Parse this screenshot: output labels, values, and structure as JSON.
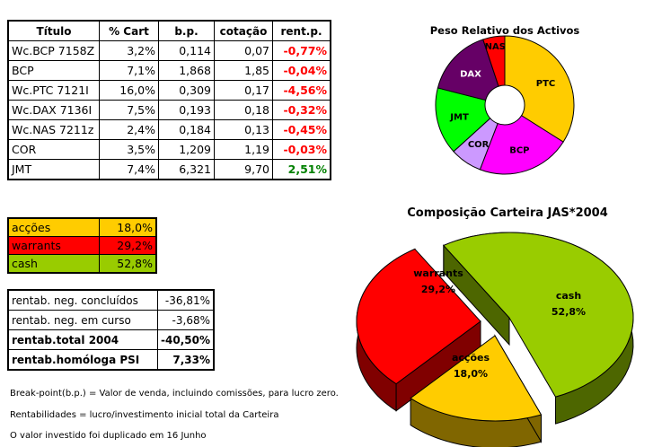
{
  "holdings": {
    "headers": [
      "Título",
      "% Cart",
      "b.p.",
      "cotação",
      "rent.p."
    ],
    "rows": [
      {
        "titulo": "Wc.BCP 7158Z",
        "cart": "3,2%",
        "bp": "0,114",
        "cotacao": "0,07",
        "rent": "-0,77%",
        "sign": "neg"
      },
      {
        "titulo": "BCP",
        "cart": "7,1%",
        "bp": "1,868",
        "cotacao": "1,85",
        "rent": "-0,04%",
        "sign": "neg"
      },
      {
        "titulo": "Wc.PTC 7121I",
        "cart": "16,0%",
        "bp": "0,309",
        "cotacao": "0,17",
        "rent": "-4,56%",
        "sign": "neg"
      },
      {
        "titulo": "Wc.DAX 7136I",
        "cart": "7,5%",
        "bp": "0,193",
        "cotacao": "0,18",
        "rent": "-0,32%",
        "sign": "neg"
      },
      {
        "titulo": "Wc.NAS 7211z",
        "cart": "2,4%",
        "bp": "0,184",
        "cotacao": "0,13",
        "rent": "-0,45%",
        "sign": "neg"
      },
      {
        "titulo": "COR",
        "cart": "3,5%",
        "bp": "1,209",
        "cotacao": "1,19",
        "rent": "-0,03%",
        "sign": "neg"
      },
      {
        "titulo": "JMT",
        "cart": "7,4%",
        "bp": "6,321",
        "cotacao": "9,70",
        "rent": "2,51%",
        "sign": "pos"
      }
    ]
  },
  "allocation": [
    {
      "label": "acções",
      "value": "18,0%",
      "color": "#ffcc00"
    },
    {
      "label": "warrants",
      "value": "29,2%",
      "color": "#ff0000"
    },
    {
      "label": "cash",
      "value": "52,8%",
      "color": "#99cc00"
    }
  ],
  "rentab": [
    {
      "label": "rentab. neg. concluídos",
      "value": "-36,81%",
      "bold": false
    },
    {
      "label": "rentab. neg. em curso",
      "value": "-3,68%",
      "bold": false
    },
    {
      "label": "rentab.total 2004",
      "value": "-40,50%",
      "bold": true
    },
    {
      "label": "rentab.homóloga PSI",
      "value": "7,33%",
      "bold": true
    }
  ],
  "notes": [
    "Break-point(b.p.) = Valor de venda, incluindo comissões, para lucro zero.",
    "Rentabilidades = lucro/investimento inicial total da Carteira",
    "O valor investido foi duplicado em 16 Junho"
  ],
  "chart_data": [
    {
      "type": "pie",
      "variant": "doughnut",
      "title": "Peso Relativo dos Activos",
      "categories": [
        "PTC",
        "BCP",
        "COR",
        "JMT",
        "DAX",
        "NAS"
      ],
      "values": [
        16.0,
        10.3,
        3.5,
        7.4,
        7.5,
        2.4
      ],
      "colors": [
        "#ffcc00",
        "#ff00ff",
        "#cc99ff",
        "#00ff00",
        "#660066",
        "#ff0000"
      ],
      "label_colors": [
        "#000000",
        "#000000",
        "#000000",
        "#000000",
        "#ffffff",
        "#000000"
      ],
      "legend": "none"
    },
    {
      "type": "pie",
      "variant": "3d-exploded",
      "title": "Composição Carteira JAS*2004",
      "categories": [
        "cash",
        "acções",
        "warrants"
      ],
      "values": [
        52.8,
        18.0,
        29.2
      ],
      "value_labels": [
        "52,8%",
        "18,0%",
        "29,2%"
      ],
      "colors": [
        "#99cc00",
        "#ffcc00",
        "#ff0000"
      ],
      "side_colors": [
        "#4d6600",
        "#806600",
        "#800000"
      ],
      "legend": "none"
    }
  ]
}
